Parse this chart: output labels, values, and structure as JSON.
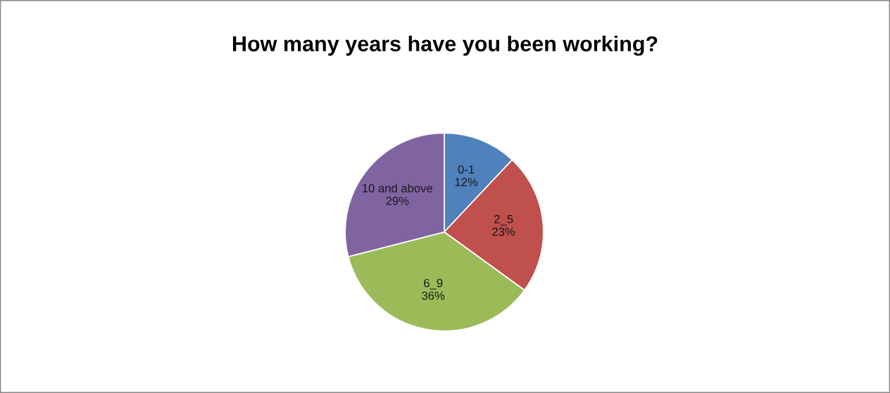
{
  "chart_data": {
    "type": "pie",
    "title": "How many years have you been working?",
    "categories": [
      "0-1",
      "2_5",
      "6_9",
      "10 and above"
    ],
    "values": [
      12,
      23,
      36,
      29
    ],
    "value_labels": [
      "12%",
      "23%",
      "36%",
      "29%"
    ],
    "colors": [
      "#4f81bd",
      "#c0504d",
      "#9bbb59",
      "#8064a2"
    ],
    "legend": false
  }
}
